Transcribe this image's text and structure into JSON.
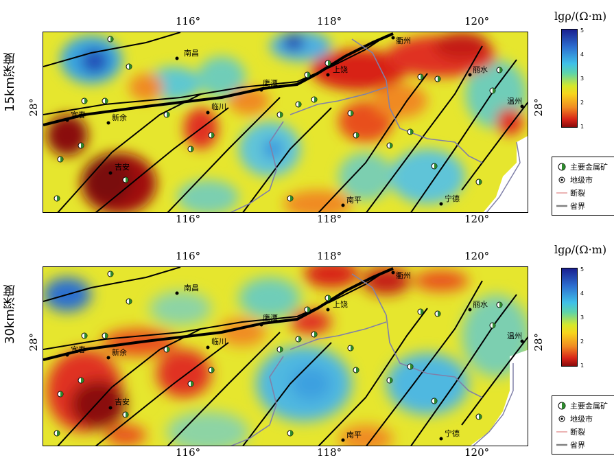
{
  "panels": [
    {
      "depth_label": "15km深度"
    },
    {
      "depth_label": "30km深度"
    }
  ],
  "axes": {
    "lon_ticks": [
      "116°",
      "118°",
      "120°"
    ],
    "lat_tick": "28°"
  },
  "colorbar": {
    "title": "lgρ/(Ω·m)",
    "ticks": [
      "5",
      "4",
      "3",
      "2",
      "1"
    ],
    "range": [
      1,
      5
    ],
    "colors": [
      "#1a1f8f",
      "#2c6fd0",
      "#3fc0e8",
      "#d6e82a",
      "#f08a22",
      "#d82418",
      "#8a0b0b"
    ]
  },
  "legend": {
    "items": [
      {
        "label": "主要金属矿",
        "icon": "half-filled-circle-icon"
      },
      {
        "label": "地级市",
        "icon": "city-dot-icon"
      },
      {
        "label": "断裂",
        "icon": "fault-line-icon"
      },
      {
        "label": "省界",
        "icon": "province-border-icon"
      }
    ]
  },
  "cities": [
    "南昌",
    "上饶",
    "衢州",
    "丽水",
    "鹰潭",
    "宜春",
    "新余",
    "临川",
    "温州",
    "吉安",
    "南平",
    "宁德"
  ],
  "colors": {
    "fault": "#000000",
    "province_border": "#8080a8",
    "deposit_fill": "#2d8a2d"
  }
}
